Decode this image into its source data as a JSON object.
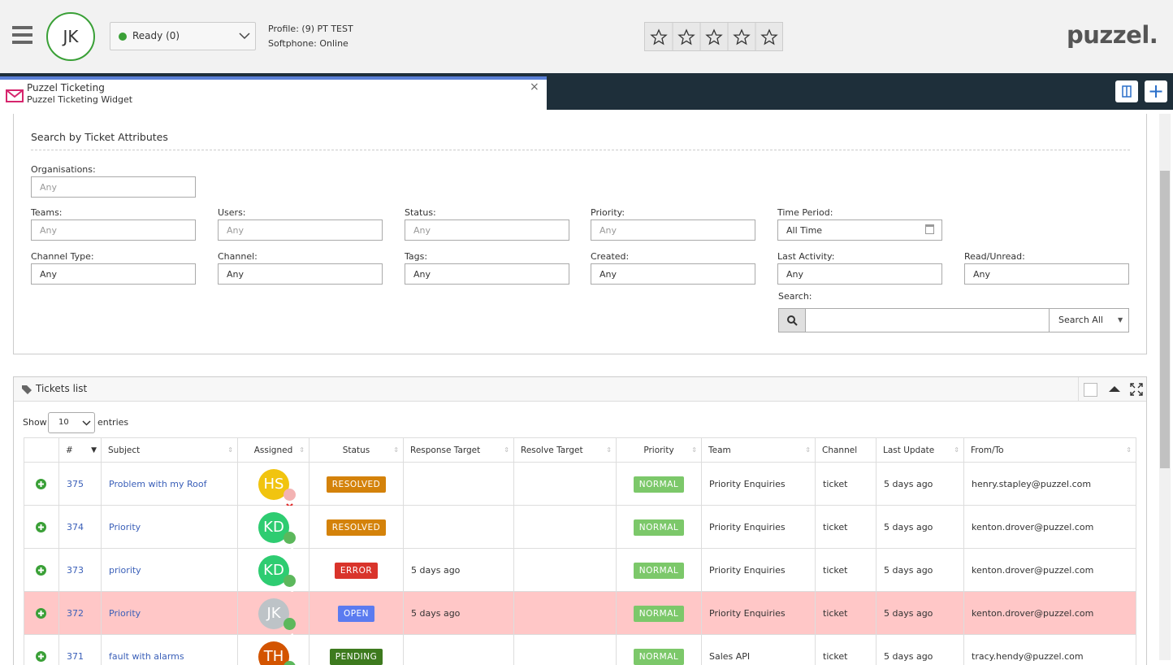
{
  "header": {
    "avatar": "JK",
    "status": "Ready (0)",
    "profile": "Profile: (9) PT TEST",
    "softphone": "Softphone: Online",
    "logo": "puzzel."
  },
  "tab": {
    "title": "Puzzel Ticketing",
    "subtitle": "Puzzel Ticketing Widget",
    "close": "×"
  },
  "search_panel": {
    "title": "Search by Ticket Attributes",
    "fields": [
      {
        "label": "Organisations:",
        "value": "Any"
      },
      {
        "label": "Teams:",
        "value": "Any"
      },
      {
        "label": "Users:",
        "value": "Any"
      },
      {
        "label": "Status:",
        "value": "Any"
      },
      {
        "label": "Priority:",
        "value": "Any"
      },
      {
        "label": "Time Period:",
        "value": "All Time"
      },
      {
        "label": "Channel Type:",
        "value": "Any"
      },
      {
        "label": "Channel:",
        "value": "Any"
      },
      {
        "label": "Tags:",
        "value": "Any"
      },
      {
        "label": "Created:",
        "value": "Any"
      },
      {
        "label": "Last Activity:",
        "value": "Any"
      },
      {
        "label": "Read/Unread:",
        "value": "Any"
      }
    ],
    "search_label": "Search:",
    "search_scope": "Search All"
  },
  "tickets": {
    "title": "Tickets list",
    "show": "Show",
    "page_size": "10",
    "entries": "entries",
    "columns": [
      "#",
      "Subject",
      "Assigned",
      "Status",
      "Response Target",
      "Resolve Target",
      "Priority",
      "Team",
      "Channel",
      "Last Update",
      "From/To"
    ],
    "rows": [
      {
        "cells": [
          "375",
          "Problem with my Roof",
          "HS",
          "RESOLVED",
          null,
          null,
          "NORMAL",
          "Priority Enquiries",
          "ticket",
          "5 days ago",
          "henry.stapley@puzzel.com"
        ],
        "avatar_color": "#f1c40f",
        "assigned_ok": false,
        "status_color": "#d4820a",
        "highlight": false
      },
      {
        "cells": [
          "374",
          "Priority",
          "KD",
          "RESOLVED",
          null,
          null,
          "NORMAL",
          "Priority Enquiries",
          "ticket",
          "5 days ago",
          "kenton.drover@puzzel.com"
        ],
        "avatar_color": "#2ecc71",
        "assigned_ok": true,
        "status_color": "#d4820a",
        "highlight": false
      },
      {
        "cells": [
          "373",
          "priority",
          "KD",
          "ERROR",
          "5 days ago",
          null,
          "NORMAL",
          "Priority Enquiries",
          "ticket",
          "5 days ago",
          "kenton.drover@puzzel.com"
        ],
        "avatar_color": "#2ecc71",
        "assigned_ok": true,
        "status_color": "#d9342b",
        "highlight": false
      },
      {
        "cells": [
          "372",
          "Priority",
          "JK",
          "OPEN",
          "5 days ago",
          null,
          "NORMAL",
          "Priority Enquiries",
          "ticket",
          "5 days ago",
          "kenton.drover@puzzel.com"
        ],
        "avatar_color": "#bdc3c7",
        "assigned_ok": true,
        "status_color": "#5b7bf0",
        "highlight": true
      },
      {
        "cells": [
          "371",
          "fault with alarms",
          "TH",
          "PENDING",
          null,
          null,
          "NORMAL",
          "Sales API",
          "ticket",
          "5 days ago",
          "tracy.hendy@puzzel.com"
        ],
        "avatar_color": "#d35400",
        "assigned_ok": true,
        "status_color": "#3d7a1e",
        "highlight": false
      }
    ]
  }
}
